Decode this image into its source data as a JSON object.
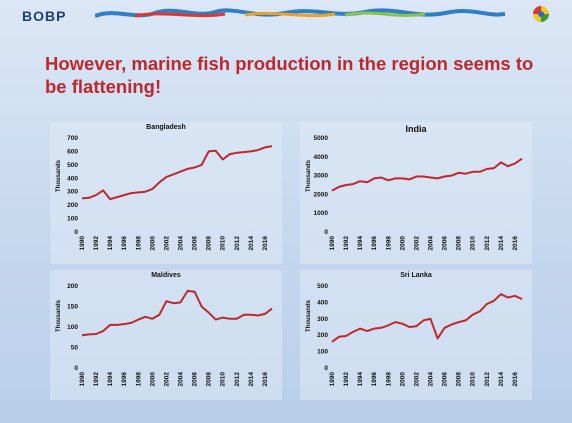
{
  "header": {
    "logo_text": "BOBP"
  },
  "slide": {
    "title": "However, marine fish production in the region seems to be flattening!"
  },
  "chart_data": [
    {
      "type": "line",
      "title": "Bangladesh",
      "ylabel": "Thousands",
      "ylim": [
        0,
        700
      ],
      "yticks": [
        0,
        100,
        200,
        300,
        400,
        500,
        600,
        700
      ],
      "xtick_labels": [
        "1990",
        "1992",
        "1994",
        "1996",
        "1998",
        "2000",
        "2002",
        "2004",
        "2006",
        "2008",
        "2010",
        "2012",
        "2014",
        "2016"
      ],
      "line_color": "#c0272d",
      "x": [
        1990,
        1991,
        1992,
        1993,
        1994,
        1995,
        1996,
        1997,
        1998,
        1999,
        2000,
        2001,
        2002,
        2003,
        2004,
        2005,
        2006,
        2007,
        2008,
        2009,
        2010,
        2011,
        2012,
        2013,
        2014,
        2015,
        2016,
        2017
      ],
      "values": [
        250,
        255,
        275,
        310,
        245,
        260,
        275,
        290,
        295,
        300,
        320,
        370,
        410,
        430,
        450,
        470,
        480,
        500,
        600,
        605,
        540,
        580,
        590,
        595,
        600,
        610,
        630,
        640
      ]
    },
    {
      "type": "line",
      "title": "India",
      "ylabel": "Thousands",
      "ylim": [
        0,
        5000
      ],
      "yticks": [
        0,
        1000,
        2000,
        3000,
        4000,
        5000
      ],
      "xtick_labels": [
        "1990",
        "1992",
        "1994",
        "1996",
        "1998",
        "2000",
        "2002",
        "2004",
        "2006",
        "2008",
        "2010",
        "2012",
        "2014",
        "2016"
      ],
      "line_color": "#c0272d",
      "x": [
        1990,
        1991,
        1992,
        1993,
        1994,
        1995,
        1996,
        1997,
        1998,
        1999,
        2000,
        2001,
        2002,
        2003,
        2004,
        2005,
        2006,
        2007,
        2008,
        2009,
        2010,
        2011,
        2012,
        2013,
        2014,
        2015,
        2016,
        2017
      ],
      "values": [
        2200,
        2400,
        2500,
        2550,
        2700,
        2650,
        2850,
        2900,
        2750,
        2850,
        2850,
        2800,
        2950,
        2950,
        2900,
        2850,
        2950,
        3000,
        3150,
        3100,
        3200,
        3200,
        3350,
        3400,
        3700,
        3500,
        3650,
        3900
      ]
    },
    {
      "type": "line",
      "title": "Maldives",
      "ylabel": "Thousands",
      "ylim": [
        0,
        200
      ],
      "yticks": [
        0,
        50,
        100,
        150,
        200
      ],
      "xtick_labels": [
        "1990",
        "1992",
        "1994",
        "1996",
        "1998",
        "2000",
        "2002",
        "2004",
        "2006",
        "2008",
        "2010",
        "2012",
        "2014",
        "2016"
      ],
      "line_color": "#c0272d",
      "x": [
        1990,
        1991,
        1992,
        1993,
        1994,
        1995,
        1996,
        1997,
        1998,
        1999,
        2000,
        2001,
        2002,
        2003,
        2004,
        2005,
        2006,
        2007,
        2008,
        2009,
        2010,
        2011,
        2012,
        2013,
        2014,
        2015,
        2016,
        2017
      ],
      "values": [
        80,
        82,
        83,
        90,
        105,
        105,
        107,
        110,
        118,
        125,
        120,
        130,
        163,
        158,
        160,
        188,
        186,
        150,
        135,
        118,
        123,
        120,
        120,
        130,
        130,
        128,
        132,
        145
      ]
    },
    {
      "type": "line",
      "title": "Sri Lanka",
      "ylabel": "Thousands",
      "ylim": [
        0,
        500
      ],
      "yticks": [
        0,
        100,
        200,
        300,
        400,
        500
      ],
      "xtick_labels": [
        "1990",
        "1992",
        "1994",
        "1996",
        "1998",
        "2000",
        "2002",
        "2004",
        "2006",
        "2008",
        "2010",
        "2012",
        "2014",
        "2016"
      ],
      "line_color": "#c0272d",
      "x": [
        1990,
        1991,
        1992,
        1993,
        1994,
        1995,
        1996,
        1997,
        1998,
        1999,
        2000,
        2001,
        2002,
        2003,
        2004,
        2005,
        2006,
        2007,
        2008,
        2009,
        2010,
        2011,
        2012,
        2013,
        2014,
        2015,
        2016,
        2017
      ],
      "values": [
        160,
        190,
        195,
        220,
        240,
        225,
        240,
        245,
        260,
        280,
        270,
        250,
        255,
        290,
        300,
        180,
        245,
        265,
        280,
        290,
        325,
        345,
        390,
        410,
        450,
        430,
        440,
        420
      ]
    }
  ]
}
